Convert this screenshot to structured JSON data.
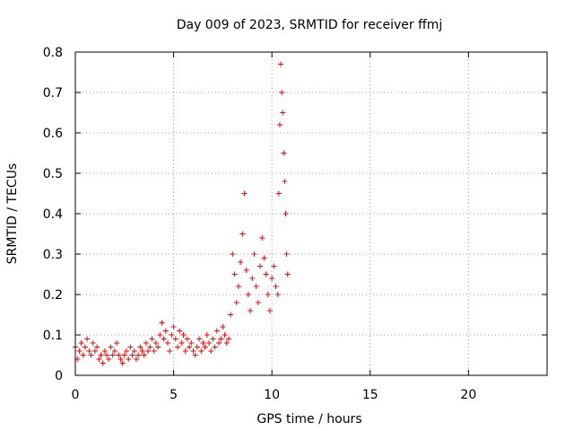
{
  "chart_data": {
    "type": "scatter",
    "title": "Day 009 of 2023, SRMTID for receiver ffmj",
    "xlabel": "GPS time / hours",
    "ylabel": "SRMTID / TECUs",
    "xlim": [
      0,
      24
    ],
    "ylim": [
      0,
      0.8
    ],
    "xticks": [
      0,
      5,
      10,
      15,
      20
    ],
    "yticks": [
      0,
      0.1,
      0.2,
      0.3,
      0.4,
      0.5,
      0.6,
      0.7,
      0.8
    ],
    "xtick_labels": [
      "0",
      "5",
      "10",
      "15",
      "20"
    ],
    "ytick_labels": [
      "0",
      "0.1",
      "0.2",
      "0.3",
      "0.4",
      "0.5",
      "0.6",
      "0.7",
      "0.8"
    ],
    "grid": true,
    "marker": "+",
    "color": "#ff0000",
    "series": [
      {
        "name": "SRMTID",
        "x": [
          0.0,
          0.1,
          0.2,
          0.3,
          0.4,
          0.5,
          0.6,
          0.7,
          0.8,
          0.9,
          1.0,
          1.1,
          1.2,
          1.3,
          1.4,
          1.5,
          1.6,
          1.7,
          1.8,
          1.9,
          2.0,
          2.1,
          2.2,
          2.3,
          2.4,
          2.5,
          2.6,
          2.7,
          2.8,
          2.9,
          3.0,
          3.1,
          3.2,
          3.3,
          3.4,
          3.5,
          3.6,
          3.7,
          3.8,
          3.9,
          4.0,
          4.1,
          4.2,
          4.3,
          4.4,
          4.5,
          4.6,
          4.7,
          4.8,
          4.9,
          5.0,
          5.1,
          5.2,
          5.3,
          5.4,
          5.5,
          5.6,
          5.7,
          5.8,
          5.9,
          6.0,
          6.1,
          6.2,
          6.3,
          6.4,
          6.5,
          6.6,
          6.7,
          6.8,
          6.9,
          7.0,
          7.1,
          7.2,
          7.3,
          7.4,
          7.5,
          7.6,
          7.7,
          7.8,
          7.9,
          8.0,
          8.1,
          8.2,
          8.3,
          8.4,
          8.5,
          8.6,
          8.7,
          8.8,
          8.9,
          9.0,
          9.1,
          9.2,
          9.3,
          9.4,
          9.5,
          9.6,
          9.7,
          9.8,
          9.9,
          10.0,
          10.1,
          10.2,
          10.3,
          10.35,
          10.4,
          10.45,
          10.5,
          10.55,
          10.6,
          10.65,
          10.7,
          10.75,
          10.8
        ],
        "y": [
          0.07,
          0.04,
          0.06,
          0.08,
          0.05,
          0.07,
          0.09,
          0.06,
          0.05,
          0.08,
          0.06,
          0.07,
          0.04,
          0.05,
          0.03,
          0.06,
          0.05,
          0.04,
          0.07,
          0.05,
          0.06,
          0.08,
          0.05,
          0.04,
          0.03,
          0.05,
          0.06,
          0.04,
          0.07,
          0.05,
          0.06,
          0.04,
          0.05,
          0.07,
          0.06,
          0.05,
          0.08,
          0.06,
          0.07,
          0.09,
          0.06,
          0.08,
          0.07,
          0.1,
          0.13,
          0.09,
          0.11,
          0.08,
          0.06,
          0.1,
          0.12,
          0.09,
          0.07,
          0.11,
          0.08,
          0.1,
          0.06,
          0.09,
          0.07,
          0.08,
          0.06,
          0.05,
          0.07,
          0.09,
          0.06,
          0.08,
          0.07,
          0.1,
          0.08,
          0.06,
          0.09,
          0.07,
          0.11,
          0.08,
          0.09,
          0.12,
          0.1,
          0.08,
          0.09,
          0.15,
          0.3,
          0.25,
          0.18,
          0.22,
          0.28,
          0.35,
          0.45,
          0.26,
          0.2,
          0.16,
          0.24,
          0.3,
          0.22,
          0.18,
          0.27,
          0.34,
          0.29,
          0.25,
          0.2,
          0.16,
          0.24,
          0.27,
          0.22,
          0.2,
          0.45,
          0.62,
          0.77,
          0.7,
          0.65,
          0.55,
          0.48,
          0.4,
          0.3,
          0.25
        ]
      }
    ]
  }
}
